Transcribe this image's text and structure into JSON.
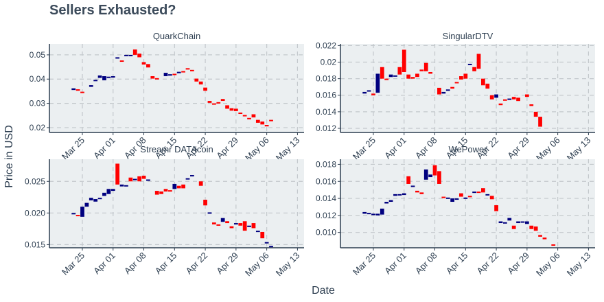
{
  "page": {
    "title": "Sellers Exhausted?"
  },
  "colors": {
    "up": "#00007f",
    "down": "#ff0000",
    "panel_bg": "#ebeff1",
    "grid": "#c3c8cc",
    "axis": "#2d3e50",
    "text": "#2d3e50"
  },
  "chart_data": {
    "type": "candlestick",
    "title": "Sellers Exhausted?",
    "xlabel": "Date",
    "ylabel": "Price in USD",
    "x_ticks": [
      "Mar 25",
      "Apr 01",
      "Apr 08",
      "Apr 15",
      "Apr 22",
      "Apr 29",
      "May 06",
      "May 13"
    ],
    "x_start_label": "Mar 18",
    "dates": [
      "Mar 23",
      "Mar 24",
      "Mar 25",
      "Mar 26",
      "Mar 27",
      "Mar 28",
      "Mar 29",
      "Mar 30",
      "Mar 31",
      "Apr 01",
      "Apr 02",
      "Apr 03",
      "Apr 04",
      "Apr 05",
      "Apr 06",
      "Apr 07",
      "Apr 08",
      "Apr 09",
      "Apr 10",
      "Apr 11",
      "Apr 12",
      "Apr 13",
      "Apr 14",
      "Apr 15",
      "Apr 16",
      "Apr 17",
      "Apr 18",
      "Apr 19",
      "Apr 20",
      "Apr 21",
      "Apr 22",
      "Apr 23",
      "Apr 24",
      "Apr 25",
      "Apr 26",
      "Apr 27",
      "Apr 28",
      "Apr 29",
      "Apr 30",
      "May 01",
      "May 02",
      "May 03",
      "May 04",
      "May 05",
      "May 06",
      "May 07",
      "May 08",
      "May 09",
      "May 10",
      "May 11",
      "May 12"
    ],
    "panels": [
      {
        "name": "QuarkChain",
        "ylim": [
          0.018,
          0.0545
        ],
        "yticks": [
          0.02,
          0.03,
          0.04,
          0.05
        ],
        "tick_labels": [
          "0.02",
          "0.03",
          "0.04",
          "0.05"
        ],
        "open": [
          0.0355,
          0.0358,
          0.0348,
          null,
          0.0368,
          0.0395,
          0.0405,
          0.0395,
          0.0408,
          0.0408,
          0.0485,
          0.0477,
          0.0498,
          0.0499,
          0.0522,
          0.0505,
          0.047,
          0.0462,
          0.0412,
          0.0404,
          null,
          0.0412,
          0.042,
          0.0422,
          0.0425,
          0.0433,
          0.0445,
          0.0438,
          0.0402,
          0.039,
          0.0365,
          0.031,
          0.03,
          0.0305,
          0.0318,
          0.0292,
          0.028,
          0.0278,
          0.0262,
          0.0252,
          0.024,
          0.0255,
          0.0232,
          0.0225,
          0.0211,
          0.0232
        ],
        "close": [
          0.0362,
          0.0352,
          0.0346,
          null,
          0.0375,
          0.0397,
          0.0415,
          0.0412,
          0.041,
          0.0412,
          0.049,
          0.0475,
          0.05,
          0.05,
          0.05,
          0.049,
          0.046,
          0.0448,
          0.0402,
          0.0402,
          null,
          0.0426,
          0.042,
          0.0418,
          0.043,
          0.0432,
          0.044,
          0.0435,
          0.039,
          0.0378,
          0.0352,
          0.0302,
          0.0298,
          0.03,
          0.031,
          0.0278,
          0.027,
          0.0268,
          0.0258,
          0.025,
          0.0235,
          0.0242,
          0.022,
          0.0213,
          0.0205,
          0.0228
        ]
      },
      {
        "name": "SingularDTV",
        "ylim": [
          0.0115,
          0.0222
        ],
        "yticks": [
          0.012,
          0.014,
          0.016,
          0.018,
          0.02,
          0.022
        ],
        "tick_labels": [
          "0.012",
          "0.014",
          "0.016",
          "0.018",
          "0.02",
          "0.022"
        ],
        "open": [
          0.0162,
          0.0165,
          0.0162,
          0.0163,
          0.0194,
          0.018,
          0.0182,
          0.0183,
          0.0194,
          0.0215,
          0.0185,
          0.0182,
          0.0186,
          0.0191,
          0.0199,
          0.0188,
          null,
          0.0169,
          0.0162,
          0.0167,
          0.017,
          0.0176,
          0.0183,
          0.0186,
          0.0197,
          0.0194,
          0.021,
          0.018,
          0.0174,
          0.016,
          0.0157,
          0.015,
          0.0155,
          0.0156,
          0.0158,
          0.0157,
          null,
          0.0161,
          0.0149,
          0.014,
          0.0134
        ],
        "close": [
          0.0164,
          0.0166,
          0.016,
          0.0186,
          0.018,
          0.0179,
          0.0185,
          0.0184,
          0.0185,
          0.0188,
          0.018,
          0.018,
          0.0182,
          0.0189,
          0.0189,
          0.0186,
          null,
          0.0161,
          0.0164,
          0.0167,
          0.0168,
          0.0175,
          0.0179,
          0.018,
          0.0198,
          0.0189,
          0.0192,
          0.0172,
          0.0168,
          0.0155,
          0.0161,
          0.0148,
          0.0154,
          0.0156,
          0.0155,
          0.0153,
          null,
          0.0158,
          0.0147,
          0.0134,
          0.0122
        ]
      },
      {
        "name": "Streamr DATAcoin",
        "ylim": [
          0.0145,
          0.0285
        ],
        "yticks": [
          0.015,
          0.02,
          0.025
        ],
        "tick_labels": [
          "0.015",
          "0.020",
          "0.025"
        ],
        "open": [
          0.0198,
          0.0197,
          0.0194,
          0.021,
          0.022,
          0.0218,
          0.0222,
          0.0227,
          0.023,
          0.0235,
          0.0278,
          0.0242,
          0.0244,
          0.0256,
          0.0252,
          0.0258,
          0.0259,
          0.0252,
          null,
          0.0235,
          0.0234,
          0.0238,
          0.0236,
          0.0238,
          0.0243,
          0.0245,
          0.0255,
          0.0258,
          null,
          0.025,
          0.0221,
          0.02,
          0.0185,
          0.0182,
          0.0186,
          0.0187,
          0.0179,
          0.0183,
          0.0184,
          0.0187,
          0.0179,
          0.0184,
          0.0172,
          0.017,
          0.0152,
          0.0148
        ],
        "close": [
          0.02,
          0.0195,
          0.021,
          0.0216,
          0.0224,
          0.0222,
          0.0224,
          0.0232,
          0.0238,
          0.0238,
          0.0245,
          0.0245,
          0.0244,
          0.025,
          0.0254,
          0.025,
          0.0254,
          0.0253,
          null,
          0.0229,
          0.023,
          0.0234,
          0.0235,
          0.0246,
          0.0239,
          0.0239,
          0.0255,
          0.026,
          null,
          0.0243,
          0.0212,
          0.0201,
          0.0182,
          0.0181,
          0.0192,
          0.0184,
          0.0176,
          0.0184,
          0.018,
          0.0172,
          0.018,
          0.0176,
          0.0172,
          0.016,
          0.0154,
          0.0148
        ]
      },
      {
        "name": "WePower",
        "ylim": [
          0.0082,
          0.0186
        ],
        "yticks": [
          0.01,
          0.012,
          0.014,
          0.016,
          0.018
        ],
        "tick_labels": [
          "0.010",
          "0.012",
          "0.014",
          "0.016",
          "0.018"
        ],
        "open": [
          0.0122,
          0.0122,
          0.0121,
          0.012,
          0.0121,
          0.0134,
          0.0136,
          0.0143,
          0.0144,
          0.0144,
          0.0166,
          0.0155,
          0.0149,
          0.0147,
          0.0162,
          0.0165,
          0.0179,
          0.0172,
          0.0142,
          0.0141,
          0.0136,
          0.014,
          0.0146,
          0.014,
          0.0143,
          0.0147,
          0.0148,
          0.0152,
          0.0145,
          0.0143,
          0.0132,
          0.0111,
          0.0111,
          0.0114,
          0.0108,
          0.0111,
          0.0113,
          0.011,
          0.0108,
          0.0107,
          0.0097,
          0.0094,
          null,
          0.0086
        ],
        "close": [
          0.0124,
          0.0123,
          0.0122,
          0.0122,
          0.0128,
          0.0136,
          0.0138,
          0.0145,
          0.0145,
          0.0146,
          0.0157,
          0.0155,
          0.0147,
          0.0145,
          0.0174,
          0.0168,
          0.0167,
          0.0157,
          0.0141,
          0.0141,
          0.014,
          0.014,
          0.0142,
          0.0141,
          0.0142,
          0.0148,
          0.0147,
          0.0147,
          0.0145,
          0.0139,
          0.0125,
          0.0113,
          0.0112,
          0.0117,
          0.0104,
          0.0113,
          0.0113,
          0.0113,
          0.0104,
          0.0102,
          0.0095,
          0.0092,
          null,
          0.0085
        ]
      }
    ]
  }
}
